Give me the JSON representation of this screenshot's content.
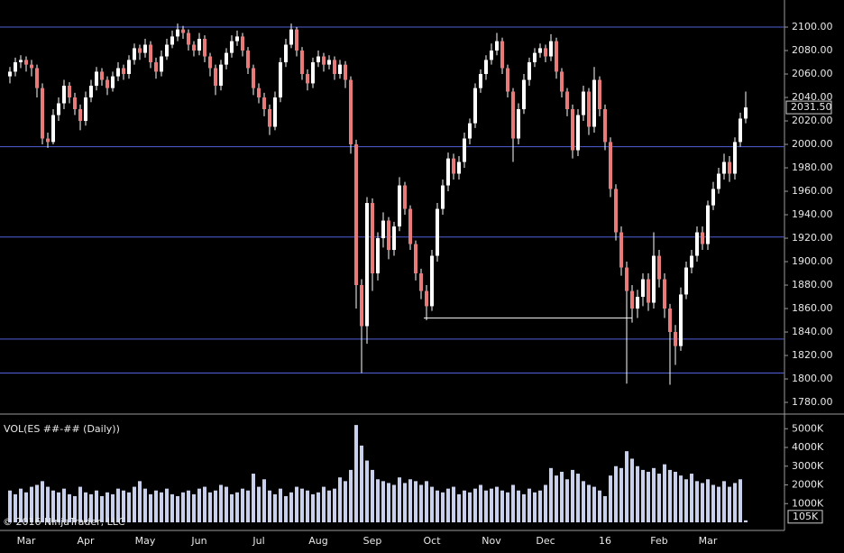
{
  "chart_data": {
    "type": "candlestick",
    "categories": [
      null,
      null,
      null,
      "Mar",
      null,
      null,
      null,
      null,
      null,
      null,
      null,
      null,
      null,
      null,
      "Apr",
      null,
      null,
      null,
      null,
      null,
      null,
      null,
      null,
      null,
      null,
      "May",
      null,
      null,
      null,
      null,
      null,
      null,
      null,
      null,
      null,
      "Jun",
      null,
      null,
      null,
      null,
      null,
      null,
      null,
      null,
      null,
      null,
      "Jul",
      null,
      null,
      null,
      null,
      null,
      null,
      null,
      null,
      null,
      null,
      "Aug",
      null,
      null,
      null,
      null,
      null,
      null,
      null,
      null,
      null,
      "Sep",
      null,
      null,
      null,
      null,
      null,
      null,
      null,
      null,
      null,
      null,
      "Oct",
      null,
      null,
      null,
      null,
      null,
      null,
      null,
      null,
      null,
      null,
      "Nov",
      null,
      null,
      null,
      null,
      null,
      null,
      null,
      null,
      null,
      "Dec",
      null,
      null,
      null,
      null,
      null,
      null,
      null,
      null,
      null,
      null,
      "16",
      null,
      null,
      null,
      null,
      null,
      null,
      null,
      null,
      null,
      "Feb",
      null,
      null,
      null,
      null,
      null,
      null,
      null,
      null,
      "Mar",
      null,
      null,
      null,
      null,
      null,
      null,
      null
    ],
    "ohlc": [
      [
        2058,
        2066,
        2052,
        2062
      ],
      [
        2062,
        2074,
        2058,
        2070
      ],
      [
        2070,
        2076,
        2065,
        2072
      ],
      [
        2072,
        2075,
        2062,
        2068
      ],
      [
        2068,
        2072,
        2058,
        2065
      ],
      [
        2065,
        2068,
        2040,
        2048
      ],
      [
        2048,
        2052,
        2000,
        2005
      ],
      [
        2005,
        2010,
        1997,
        2002
      ],
      [
        2002,
        2030,
        2000,
        2025
      ],
      [
        2025,
        2040,
        2020,
        2035
      ],
      [
        2035,
        2055,
        2030,
        2050
      ],
      [
        2050,
        2053,
        2035,
        2040
      ],
      [
        2040,
        2044,
        2025,
        2030
      ],
      [
        2030,
        2034,
        2012,
        2020
      ],
      [
        2020,
        2045,
        2016,
        2040
      ],
      [
        2040,
        2055,
        2036,
        2050
      ],
      [
        2050,
        2066,
        2046,
        2062
      ],
      [
        2062,
        2065,
        2050,
        2055
      ],
      [
        2055,
        2058,
        2042,
        2048
      ],
      [
        2048,
        2062,
        2045,
        2058
      ],
      [
        2058,
        2070,
        2054,
        2065
      ],
      [
        2065,
        2068,
        2055,
        2060
      ],
      [
        2060,
        2076,
        2056,
        2072
      ],
      [
        2072,
        2086,
        2068,
        2082
      ],
      [
        2082,
        2085,
        2072,
        2078
      ],
      [
        2078,
        2090,
        2074,
        2085
      ],
      [
        2085,
        2088,
        2065,
        2070
      ],
      [
        2070,
        2074,
        2056,
        2062
      ],
      [
        2062,
        2080,
        2058,
        2075
      ],
      [
        2075,
        2090,
        2072,
        2085
      ],
      [
        2085,
        2097,
        2082,
        2092
      ],
      [
        2092,
        2103,
        2088,
        2098
      ],
      [
        2098,
        2101,
        2090,
        2095
      ],
      [
        2095,
        2098,
        2080,
        2085
      ],
      [
        2085,
        2088,
        2075,
        2080
      ],
      [
        2080,
        2095,
        2076,
        2090
      ],
      [
        2090,
        2093,
        2070,
        2075
      ],
      [
        2075,
        2078,
        2058,
        2065
      ],
      [
        2065,
        2068,
        2042,
        2050
      ],
      [
        2050,
        2072,
        2046,
        2068
      ],
      [
        2068,
        2082,
        2064,
        2078
      ],
      [
        2078,
        2093,
        2074,
        2088
      ],
      [
        2088,
        2097,
        2084,
        2092
      ],
      [
        2092,
        2095,
        2075,
        2080
      ],
      [
        2080,
        2083,
        2060,
        2065
      ],
      [
        2065,
        2068,
        2042,
        2048
      ],
      [
        2048,
        2052,
        2035,
        2040
      ],
      [
        2040,
        2044,
        2024,
        2030
      ],
      [
        2030,
        2034,
        2008,
        2015
      ],
      [
        2015,
        2045,
        2012,
        2040
      ],
      [
        2040,
        2074,
        2036,
        2070
      ],
      [
        2070,
        2090,
        2066,
        2085
      ],
      [
        2085,
        2103,
        2082,
        2098
      ],
      [
        2098,
        2100,
        2075,
        2080
      ],
      [
        2080,
        2083,
        2055,
        2060
      ],
      [
        2060,
        2064,
        2046,
        2052
      ],
      [
        2052,
        2074,
        2048,
        2070
      ],
      [
        2070,
        2080,
        2066,
        2075
      ],
      [
        2075,
        2078,
        2062,
        2068
      ],
      [
        2068,
        2076,
        2064,
        2072
      ],
      [
        2072,
        2075,
        2055,
        2060
      ],
      [
        2060,
        2072,
        2056,
        2068
      ],
      [
        2068,
        2071,
        2048,
        2055
      ],
      [
        2055,
        2058,
        1992,
        2000
      ],
      [
        2000,
        2004,
        1860,
        1880
      ],
      [
        1880,
        1885,
        1805,
        1845
      ],
      [
        1845,
        1955,
        1830,
        1950
      ],
      [
        1950,
        1954,
        1875,
        1890
      ],
      [
        1890,
        1925,
        1884,
        1920
      ],
      [
        1920,
        1942,
        1912,
        1935
      ],
      [
        1935,
        1938,
        1902,
        1910
      ],
      [
        1910,
        1934,
        1905,
        1930
      ],
      [
        1930,
        1972,
        1926,
        1965
      ],
      [
        1965,
        1968,
        1940,
        1945
      ],
      [
        1945,
        1948,
        1910,
        1915
      ],
      [
        1915,
        1918,
        1884,
        1890
      ],
      [
        1890,
        1894,
        1868,
        1875
      ],
      [
        1875,
        1880,
        1850,
        1862
      ],
      [
        1862,
        1910,
        1858,
        1905
      ],
      [
        1905,
        1950,
        1900,
        1945
      ],
      [
        1945,
        1970,
        1940,
        1965
      ],
      [
        1965,
        1993,
        1960,
        1988
      ],
      [
        1988,
        1992,
        1970,
        1975
      ],
      [
        1975,
        1990,
        1970,
        1985
      ],
      [
        1985,
        2010,
        1980,
        2005
      ],
      [
        2005,
        2022,
        2000,
        2018
      ],
      [
        2018,
        2052,
        2014,
        2048
      ],
      [
        2048,
        2064,
        2044,
        2060
      ],
      [
        2060,
        2076,
        2055,
        2072
      ],
      [
        2072,
        2086,
        2068,
        2080
      ],
      [
        2080,
        2095,
        2076,
        2088
      ],
      [
        2088,
        2091,
        2060,
        2065
      ],
      [
        2065,
        2068,
        2040,
        2045
      ],
      [
        2045,
        2048,
        1985,
        2005
      ],
      [
        2005,
        2035,
        2000,
        2030
      ],
      [
        2030,
        2060,
        2026,
        2055
      ],
      [
        2055,
        2074,
        2050,
        2070
      ],
      [
        2070,
        2082,
        2066,
        2078
      ],
      [
        2078,
        2086,
        2074,
        2082
      ],
      [
        2082,
        2085,
        2070,
        2075
      ],
      [
        2075,
        2094,
        2071,
        2088
      ],
      [
        2088,
        2091,
        2056,
        2062
      ],
      [
        2062,
        2065,
        2040,
        2045
      ],
      [
        2045,
        2048,
        2024,
        2030
      ],
      [
        2030,
        2034,
        1988,
        1995
      ],
      [
        1995,
        2030,
        1990,
        2025
      ],
      [
        2025,
        2050,
        2020,
        2045
      ],
      [
        2045,
        2048,
        2008,
        2015
      ],
      [
        2015,
        2066,
        2010,
        2055
      ],
      [
        2055,
        2058,
        2024,
        2030
      ],
      [
        2030,
        2034,
        1995,
        2002
      ],
      [
        2002,
        2006,
        1955,
        1962
      ],
      [
        1962,
        1966,
        1918,
        1925
      ],
      [
        1925,
        1930,
        1888,
        1895
      ],
      [
        1895,
        1900,
        1796,
        1875
      ],
      [
        1875,
        1880,
        1848,
        1860
      ],
      [
        1860,
        1876,
        1852,
        1870
      ],
      [
        1870,
        1890,
        1862,
        1885
      ],
      [
        1885,
        1890,
        1858,
        1865
      ],
      [
        1865,
        1925,
        1860,
        1905
      ],
      [
        1905,
        1910,
        1878,
        1885
      ],
      [
        1885,
        1890,
        1852,
        1860
      ],
      [
        1860,
        1864,
        1795,
        1840
      ],
      [
        1840,
        1846,
        1812,
        1828
      ],
      [
        1828,
        1878,
        1824,
        1872
      ],
      [
        1872,
        1900,
        1868,
        1895
      ],
      [
        1895,
        1910,
        1890,
        1905
      ],
      [
        1905,
        1930,
        1900,
        1925
      ],
      [
        1925,
        1930,
        1910,
        1915
      ],
      [
        1915,
        1952,
        1910,
        1948
      ],
      [
        1948,
        1968,
        1944,
        1962
      ],
      [
        1962,
        1980,
        1958,
        1975
      ],
      [
        1975,
        1992,
        1970,
        1985
      ],
      [
        1985,
        1990,
        1968,
        1975
      ],
      [
        1975,
        2006,
        1970,
        2002
      ],
      [
        2002,
        2027,
        1998,
        2022
      ],
      [
        2022,
        2045,
        2018,
        2031.5
      ]
    ],
    "up_color": "#ffffff",
    "down_color": "#e87a7a",
    "wick_color": "#ffffff",
    "ylim": [
      1770.8,
      2123.1
    ],
    "yticks": [
      {
        "value": 1780,
        "label": "1780.00"
      },
      {
        "value": 1800,
        "label": "1800.00"
      },
      {
        "value": 1820,
        "label": "1820.00"
      },
      {
        "value": 1840,
        "label": "1840.00"
      },
      {
        "value": 1860,
        "label": "1860.00"
      },
      {
        "value": 1880,
        "label": "1880.00"
      },
      {
        "value": 1900,
        "label": "1900.00"
      },
      {
        "value": 1920,
        "label": "1920.00"
      },
      {
        "value": 1940,
        "label": "1940.00"
      },
      {
        "value": 1960,
        "label": "1960.00"
      },
      {
        "value": 1980,
        "label": "1980.00"
      },
      {
        "value": 2000,
        "label": "2000.00"
      },
      {
        "value": 2020,
        "label": "2020.00"
      },
      {
        "value": 2040,
        "label": "2040.00"
      },
      {
        "value": 2060,
        "label": "2060.00"
      },
      {
        "value": 2080,
        "label": "2080.00"
      },
      {
        "value": 2100,
        "label": "2100.00"
      }
    ],
    "last_price": 2031.5,
    "last_price_label": "2031.50",
    "levels": [
      2100,
      1998,
      1921,
      1834,
      1805
    ],
    "level_color": "#5060d8",
    "support_line": 1852,
    "volume": {
      "title": "VOL(ES ##-## (Daily))",
      "color": "#c8d0ec",
      "values": [
        1700,
        1500,
        1800,
        1600,
        1900,
        2000,
        2200,
        1900,
        1700,
        1600,
        1800,
        1500,
        1400,
        1900,
        1600,
        1500,
        1700,
        1400,
        1600,
        1500,
        1800,
        1700,
        1600,
        1900,
        2200,
        1800,
        1500,
        1700,
        1600,
        1800,
        1500,
        1400,
        1600,
        1700,
        1500,
        1800,
        1900,
        1600,
        1700,
        2000,
        1900,
        1500,
        1600,
        1800,
        1700,
        2600,
        1900,
        2300,
        1700,
        1500,
        1800,
        1400,
        1600,
        1900,
        1800,
        1700,
        1500,
        1600,
        1900,
        1700,
        1800,
        2400,
        2200,
        2800,
        5200,
        4100,
        3300,
        2800,
        2300,
        2200,
        2100,
        2000,
        2400,
        2100,
        2300,
        2200,
        2000,
        2200,
        1900,
        1700,
        1600,
        1800,
        1900,
        1500,
        1700,
        1600,
        1800,
        2000,
        1700,
        1800,
        1900,
        1700,
        1600,
        2000,
        1700,
        1500,
        1800,
        1600,
        1700,
        2000,
        2900,
        2500,
        2700,
        2300,
        2800,
        2600,
        2200,
        2000,
        1900,
        1700,
        1400,
        2500,
        3000,
        2900,
        3800,
        3400,
        3000,
        2800,
        2700,
        2900,
        2600,
        3100,
        2800,
        2700,
        2500,
        2300,
        2600,
        2200,
        2100,
        2300,
        2000,
        1900,
        2200,
        1900,
        2100,
        2300,
        105
      ],
      "ylim": [
        0,
        5735
      ],
      "yticks": [
        {
          "value": 1000,
          "label": "1000K"
        },
        {
          "value": 2000,
          "label": "2000K"
        },
        {
          "value": 3000,
          "label": "3000K"
        },
        {
          "value": 4000,
          "label": "4000K"
        },
        {
          "value": 5000,
          "label": "5000K"
        }
      ],
      "last_value_label": "105K"
    },
    "copyright": "© 2016 NinjaTrader, LLC"
  }
}
